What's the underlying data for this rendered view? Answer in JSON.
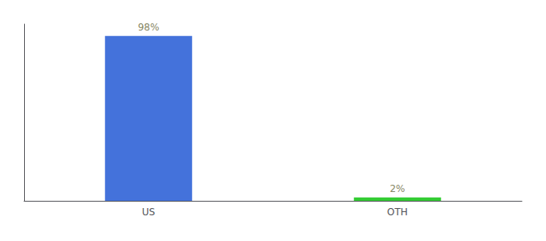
{
  "chart_data": {
    "type": "bar",
    "categories": [
      "US",
      "OTH"
    ],
    "values": [
      98,
      2
    ],
    "value_labels": [
      "98%",
      "2%"
    ],
    "colors": [
      "#4472db",
      "#33cc33"
    ],
    "ylim": [
      0,
      105
    ],
    "yticks": [],
    "grid": false,
    "data_labels": true,
    "tick_labels": "x"
  }
}
